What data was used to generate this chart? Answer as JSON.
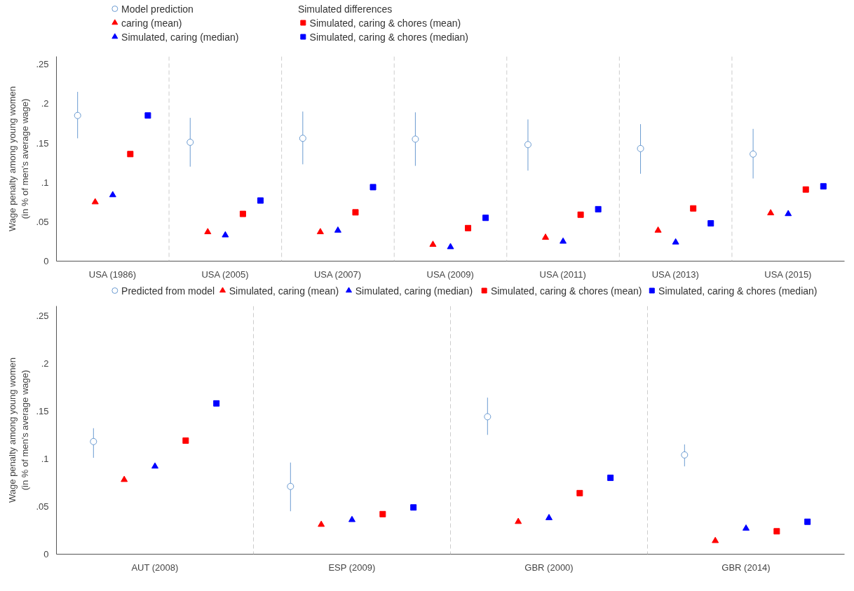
{
  "chart_data": [
    {
      "type": "scatter",
      "ylabel": "Wage penalty among young women\n(in % of men's average wage)",
      "legend_title": "Simulated differences",
      "legend": "top",
      "grid": "x",
      "categories": [
        "USA (1986)",
        "USA (2005)",
        "USA (2007)",
        "USA (2009)",
        "USA (2011)",
        "USA (2013)",
        "USA (2015)"
      ],
      "ylim": [
        0,
        0.26
      ],
      "yticks": [
        {
          "value": 0,
          "label": "0"
        },
        {
          "value": 0.05,
          "label": ".05"
        },
        {
          "value": 0.1,
          "label": ".1"
        },
        {
          "value": 0.15,
          "label": ".15"
        },
        {
          "value": 0.2,
          "label": ".2"
        },
        {
          "value": 0.25,
          "label": ".25"
        }
      ],
      "series": [
        {
          "name": "Model prediction",
          "color": "#6b9bd1",
          "marker": "circle",
          "values": [
            0.185,
            0.151,
            0.156,
            0.155,
            0.148,
            0.143,
            0.136
          ],
          "errors": [
            [
              0.156,
              0.215
            ],
            [
              0.12,
              0.182
            ],
            [
              0.123,
              0.19
            ],
            [
              0.121,
              0.189
            ],
            [
              0.115,
              0.18
            ],
            [
              0.111,
              0.174
            ],
            [
              0.105,
              0.168
            ]
          ]
        },
        {
          "name": "caring (mean)",
          "color": "#ff0000",
          "marker": "triangle",
          "values": [
            0.075,
            0.037,
            0.037,
            0.021,
            0.03,
            0.039,
            0.061
          ]
        },
        {
          "name": "Simulated, caring (median)",
          "color": "#0000ff",
          "marker": "triangle",
          "values": [
            0.084,
            0.033,
            0.039,
            0.018,
            0.025,
            0.024,
            0.06
          ]
        },
        {
          "name": "Simulated, caring & chores (mean)",
          "color": "#ff0000",
          "marker": "square",
          "values": [
            0.136,
            0.06,
            0.062,
            0.042,
            0.059,
            0.067,
            0.091
          ]
        },
        {
          "name": "Simulated, caring & chores (median)",
          "color": "#0000ff",
          "marker": "square",
          "values": [
            0.185,
            0.077,
            0.094,
            0.055,
            0.066,
            0.048,
            0.095
          ]
        }
      ]
    },
    {
      "type": "scatter",
      "ylabel": "Wage penalty among young women\n(in % of men's average wage)",
      "legend": "top",
      "grid": "x",
      "categories": [
        "AUT (2008)",
        "ESP (2009)",
        "GBR (2000)",
        "GBR (2014)"
      ],
      "ylim": [
        0,
        0.26
      ],
      "yticks": [
        {
          "value": 0,
          "label": "0"
        },
        {
          "value": 0.05,
          "label": ".05"
        },
        {
          "value": 0.1,
          "label": ".1"
        },
        {
          "value": 0.15,
          "label": ".15"
        },
        {
          "value": 0.2,
          "label": ".2"
        },
        {
          "value": 0.25,
          "label": ".25"
        }
      ],
      "series": [
        {
          "name": "Predicted from model",
          "color": "#6b9bd1",
          "marker": "circle",
          "values": [
            0.118,
            0.071,
            0.144,
            0.104
          ],
          "errors": [
            [
              0.101,
              0.132
            ],
            [
              0.045,
              0.096
            ],
            [
              0.125,
              0.164
            ],
            [
              0.092,
              0.115
            ]
          ]
        },
        {
          "name": "Simulated, caring (mean)",
          "color": "#ff0000",
          "marker": "triangle",
          "values": [
            0.078,
            0.031,
            0.034,
            0.014
          ]
        },
        {
          "name": "Simulated, caring (median)",
          "color": "#0000ff",
          "marker": "triangle",
          "values": [
            0.092,
            0.036,
            0.038,
            0.027
          ]
        },
        {
          "name": "Simulated, caring & chores (mean)",
          "color": "#ff0000",
          "marker": "square",
          "values": [
            0.119,
            0.042,
            0.064,
            0.024
          ]
        },
        {
          "name": "Simulated, caring & chores (median)",
          "color": "#0000ff",
          "marker": "square",
          "values": [
            0.158,
            0.049,
            0.08,
            0.034
          ]
        }
      ]
    }
  ]
}
